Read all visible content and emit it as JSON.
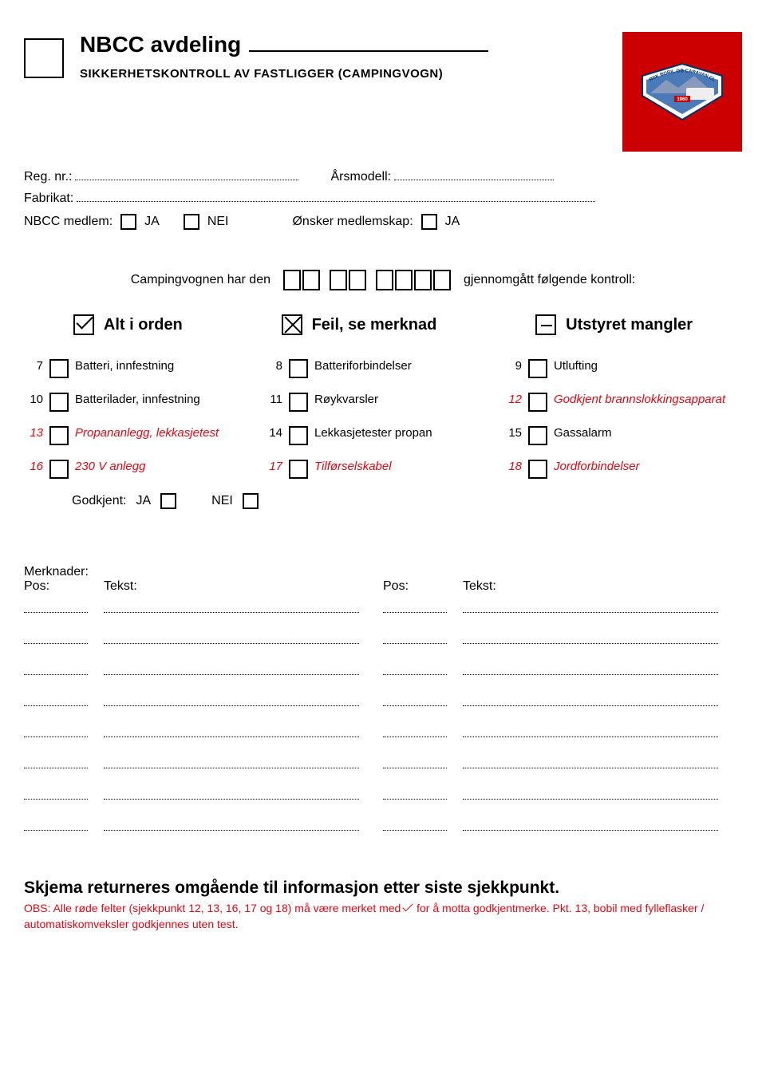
{
  "header": {
    "title": "NBCC avdeling",
    "subtitle": "SIKKERHETSKONTROLL AV FASTLIGGER (CAMPINGVOGN)",
    "logo_text_top": "NORSK BOBIL OG CARAVAN CLUB",
    "logo_year": "1960",
    "logo_bg_color": "#c00"
  },
  "info": {
    "reg_nr_label": "Reg. nr.:",
    "arsmodell_label": "Årsmodell:",
    "fabrikat_label": "Fabrikat:",
    "nbcc_medlem_label": "NBCC medlem:",
    "ja_label": "JA",
    "nei_label": "NEI",
    "onsker_medlemskap_label": "Ønsker medlemskap:"
  },
  "inspection": {
    "text_before": "Campingvognen har den",
    "text_after": "gjennomgått følgende kontroll:"
  },
  "legend": {
    "alt_i_orden": "Alt i orden",
    "feil_se_merknad": "Feil, se merknad",
    "utstyret_mangler": "Utstyret mangler"
  },
  "checklist": [
    {
      "num": "7",
      "text": "Batteri, innfestning",
      "red": false
    },
    {
      "num": "8",
      "text": "Batteriforbindelser",
      "red": false
    },
    {
      "num": "9",
      "text": "Utlufting",
      "red": false
    },
    {
      "num": "10",
      "text": "Batterilader, innfestning",
      "red": false
    },
    {
      "num": "11",
      "text": "Røykvarsler",
      "red": false
    },
    {
      "num": "12",
      "text": "Godkjent brannslokkingsapparat",
      "red": true
    },
    {
      "num": "13",
      "text": "Propananlegg, lekkasjetest",
      "red": true
    },
    {
      "num": "14",
      "text": "Lekkasjetester propan",
      "red": false
    },
    {
      "num": "15",
      "text": "Gassalarm",
      "red": false
    },
    {
      "num": "16",
      "text": "230 V anlegg",
      "red": true
    },
    {
      "num": "17",
      "text": "Tilførselskabel",
      "red": true
    },
    {
      "num": "18",
      "text": "Jordforbindelser",
      "red": true
    }
  ],
  "godkjent": {
    "label": "Godkjent:",
    "ja": "JA",
    "nei": "NEI"
  },
  "merknader": {
    "title": "Merknader:",
    "pos_label": "Pos:",
    "tekst_label": "Tekst:",
    "row_count": 8
  },
  "footer": {
    "title": "Skjema returneres omgående til informasjon etter siste sjekkpunkt.",
    "obs_prefix": "OBS: Alle røde felter (sjekkpunkt 12, 13, 16, 17 og 18) må være merket med",
    "obs_suffix": "for å motta godkjentmerke. Pkt. 13, bobil med fylleflasker / automatiskomveksler godkjennes uten test."
  },
  "colors": {
    "red": "#e30613",
    "black": "#000000",
    "background": "#ffffff"
  }
}
